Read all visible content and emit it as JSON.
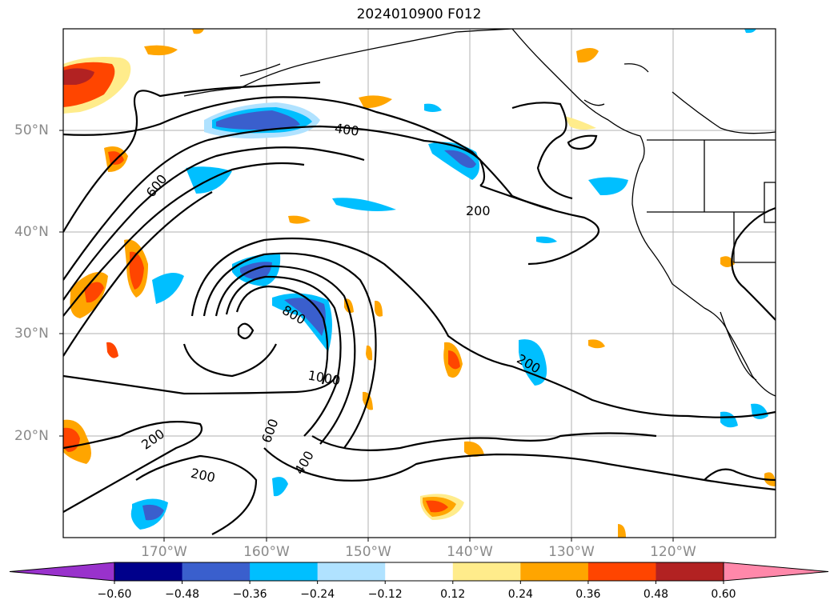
{
  "title": "2024010900 F012",
  "lat_labels": [
    "50°N",
    "40°N",
    "30°N",
    "20°N"
  ],
  "lon_labels": [
    "170°W",
    "160°W",
    "150°W",
    "140°W",
    "130°W",
    "120°W"
  ],
  "contour_labels": [
    "400",
    "600",
    "200",
    "800",
    "1000",
    "200",
    "600",
    "400",
    "200",
    "200"
  ],
  "colorbar": {
    "ticks": [
      "−0.60",
      "−0.48",
      "−0.36",
      "−0.24",
      "−0.12",
      "0.12",
      "0.24",
      "0.36",
      "0.48",
      "0.60"
    ],
    "colors": [
      "#9932cc",
      "#00008b",
      "#3a5fcd",
      "#00bfff",
      "#b0e2ff",
      "#ffffff",
      "#ffec8b",
      "#ffa500",
      "#ff4500",
      "#b22222",
      "#ff88aa"
    ],
    "extend": "both"
  }
}
